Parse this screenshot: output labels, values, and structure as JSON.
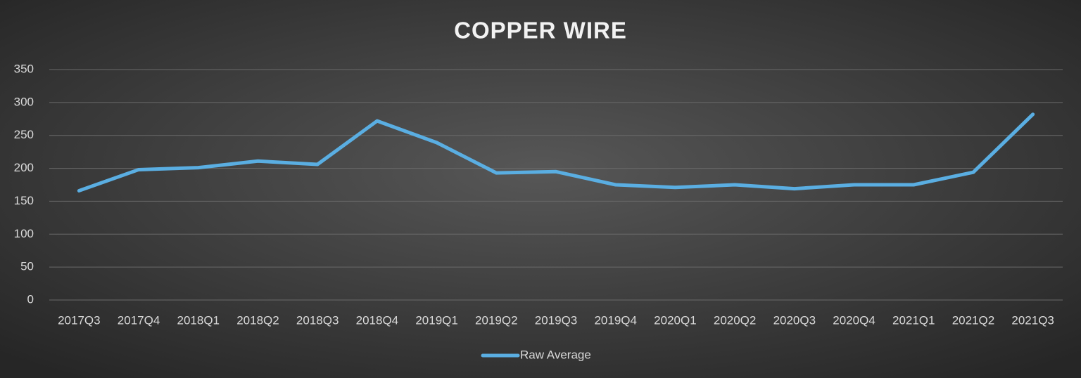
{
  "chart_data": {
    "type": "line",
    "title": "COPPER WIRE",
    "categories": [
      "2017Q3",
      "2017Q4",
      "2018Q1",
      "2018Q2",
      "2018Q3",
      "2018Q4",
      "2019Q1",
      "2019Q2",
      "2019Q3",
      "2019Q4",
      "2020Q1",
      "2020Q2",
      "2020Q3",
      "2020Q4",
      "2021Q1",
      "2021Q2",
      "2021Q3"
    ],
    "series": [
      {
        "name": "Raw Average",
        "color": "#5aaee2",
        "values": [
          166,
          198,
          201,
          211,
          206,
          272,
          239,
          193,
          195,
          175,
          171,
          175,
          169,
          175,
          175,
          194,
          282
        ]
      }
    ],
    "ylim": [
      0,
      350
    ],
    "yticks": [
      0,
      50,
      100,
      150,
      200,
      250,
      300,
      350
    ],
    "grid": true,
    "legend": "bottom"
  }
}
